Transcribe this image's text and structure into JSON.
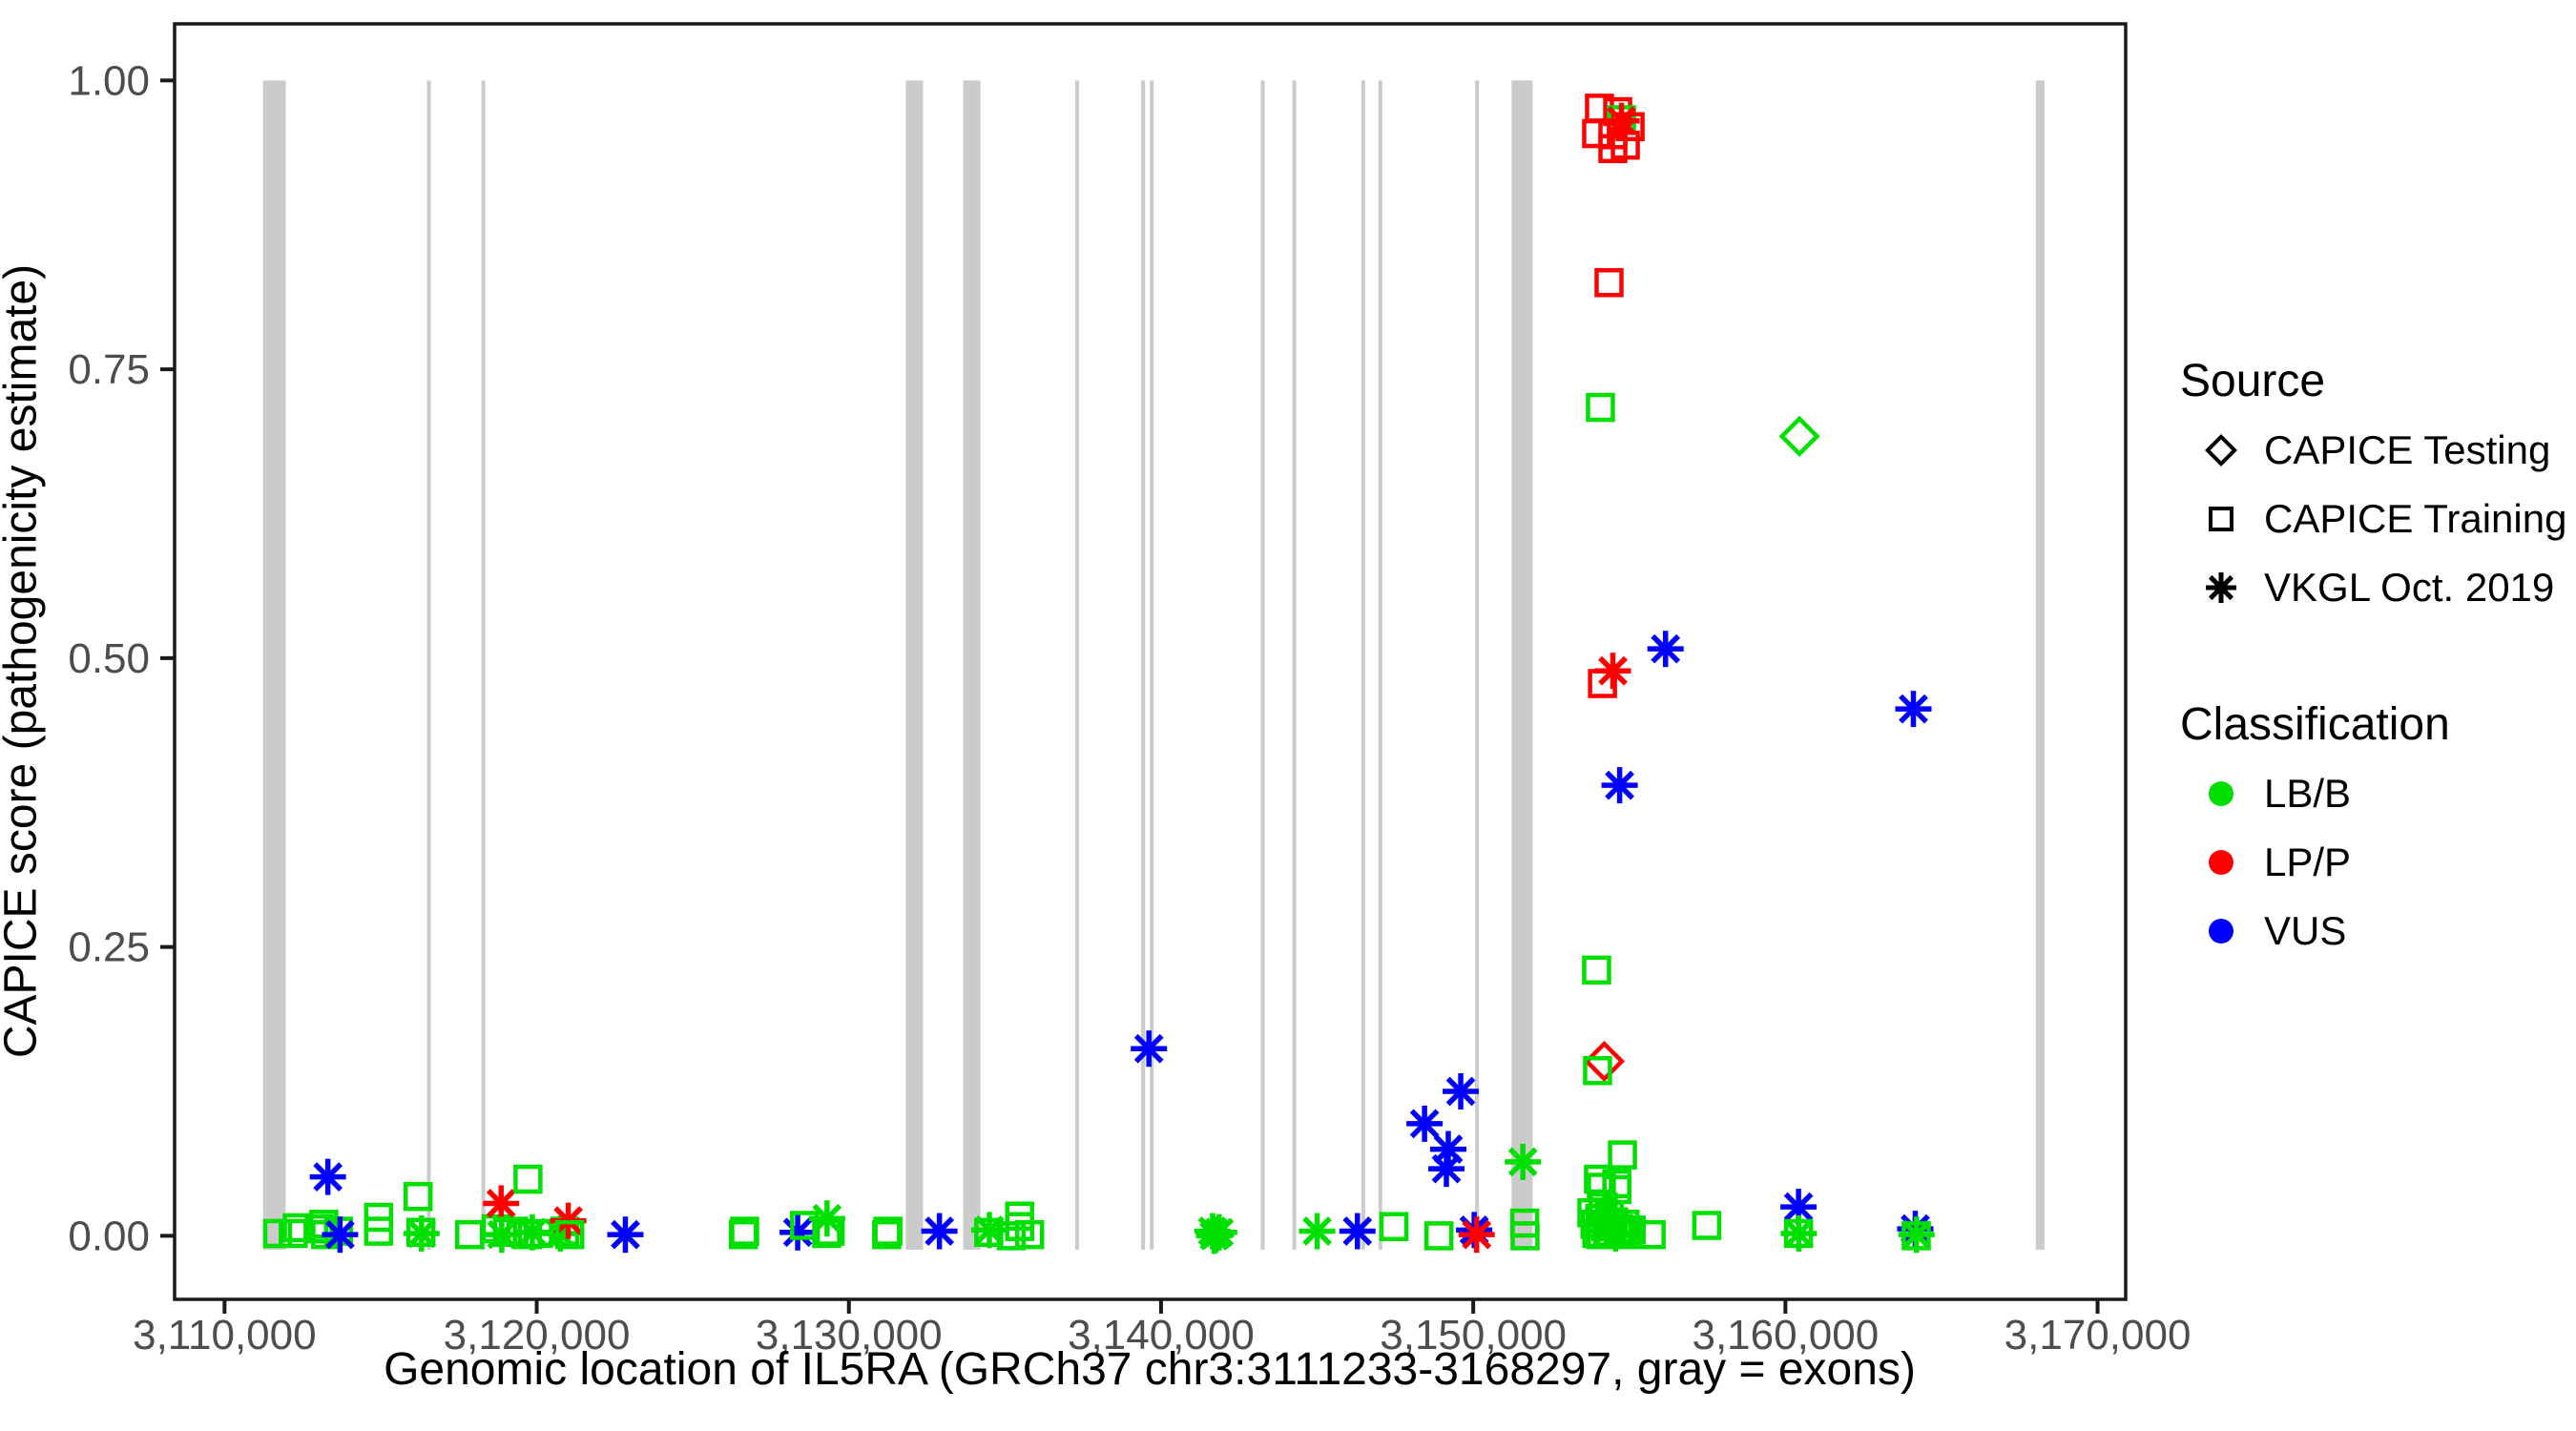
{
  "colors": {
    "lb_b": "#00E000",
    "lp_p": "#FF0000",
    "vus": "#0000FF",
    "exon_gray": "#CBCBCB",
    "axis_text": "#4D4D4D",
    "axis_line": "#1A1A1A",
    "legend_symbol": "#000000"
  },
  "legend": {
    "source": {
      "title": "Source",
      "items": [
        {
          "shape": "diamond",
          "label": "CAPICE Testing"
        },
        {
          "shape": "square",
          "label": "CAPICE Training"
        },
        {
          "shape": "asterisk",
          "label": "VKGL Oct. 2019"
        }
      ]
    },
    "classification": {
      "title": "Classification",
      "items": [
        {
          "label": "LB/B",
          "color_key": "lb_b"
        },
        {
          "label": "LP/P",
          "color_key": "lp_p"
        },
        {
          "label": "VUS",
          "color_key": "vus"
        }
      ]
    }
  },
  "chart_data": {
    "type": "scatter",
    "title": "",
    "xlabel": "Genomic location of IL5RA (GRCh37 chr3:3111233-3168297, gray = exons)",
    "ylabel": "CAPICE score (pathogenicity estimate)",
    "grid": false,
    "legend_position": "right",
    "xlim": [
      3108400,
      3170900
    ],
    "ylim": [
      -0.055,
      1.049
    ],
    "x_ticks": [
      {
        "value": 3110000,
        "label": "3,110,000"
      },
      {
        "value": 3120000,
        "label": "3,120,000"
      },
      {
        "value": 3130000,
        "label": "3,130,000"
      },
      {
        "value": 3140000,
        "label": "3,140,000"
      },
      {
        "value": 3150000,
        "label": "3,150,000"
      },
      {
        "value": 3160000,
        "label": "3,160,000"
      },
      {
        "value": 3170000,
        "label": "3,170,000"
      }
    ],
    "y_ticks": [
      {
        "value": 0.0,
        "label": "0.00"
      },
      {
        "value": 0.25,
        "label": "0.25"
      },
      {
        "value": 0.5,
        "label": "0.50"
      },
      {
        "value": 0.75,
        "label": "0.75"
      },
      {
        "value": 1.0,
        "label": "1.00"
      }
    ],
    "exons_note": "gray vertical bars = IL5RA exons, drawn from score 0 to 1",
    "exons": [
      [
        3111233,
        3111960
      ],
      [
        3116482,
        3116605
      ],
      [
        3118229,
        3118352
      ],
      [
        3131824,
        3132376
      ],
      [
        3133663,
        3134215
      ],
      [
        3137249,
        3137372
      ],
      [
        3139364,
        3139487
      ],
      [
        3139640,
        3139763
      ],
      [
        3143195,
        3143318
      ],
      [
        3144207,
        3144330
      ],
      [
        3146414,
        3146536
      ],
      [
        3146965,
        3147088
      ],
      [
        3150061,
        3150184
      ],
      [
        3151226,
        3151900
      ],
      [
        3168020,
        3168300
      ]
    ],
    "shape_legend": {
      "square": "CAPICE Training",
      "diamond": "CAPICE Testing",
      "asterisk": "VKGL Oct. 2019"
    },
    "class_legend": {
      "LB": "LB/B",
      "LP": "LP/P",
      "VUS": "VUS"
    },
    "points": [
      {
        "x": 3111700,
        "y": 0.002,
        "shape": "square",
        "cls": "LB"
      },
      {
        "x": 3112200,
        "y": 0.002,
        "shape": "square",
        "cls": "LB"
      },
      {
        "x": 3112330,
        "y": 0.007,
        "shape": "square",
        "cls": "LB"
      },
      {
        "x": 3113030,
        "y": 0.006,
        "shape": "square",
        "cls": "LB"
      },
      {
        "x": 3113180,
        "y": 0.01,
        "shape": "square",
        "cls": "LB"
      },
      {
        "x": 3113240,
        "y": 0.001,
        "shape": "square",
        "cls": "LB"
      },
      {
        "x": 3113310,
        "y": 0.051,
        "shape": "asterisk",
        "cls": "VUS"
      },
      {
        "x": 3113650,
        "y": 0.004,
        "shape": "square",
        "cls": "LB"
      },
      {
        "x": 3113700,
        "y": 0.001,
        "shape": "asterisk",
        "cls": "VUS"
      },
      {
        "x": 3114935,
        "y": 0.016,
        "shape": "square",
        "cls": "LB"
      },
      {
        "x": 3114935,
        "y": 0.004,
        "shape": "square",
        "cls": "LB"
      },
      {
        "x": 3116200,
        "y": 0.034,
        "shape": "square",
        "cls": "LB"
      },
      {
        "x": 3116290,
        "y": 0.003,
        "shape": "square",
        "cls": "LB"
      },
      {
        "x": 3116310,
        "y": 0.002,
        "shape": "asterisk",
        "cls": "LB"
      },
      {
        "x": 3117850,
        "y": 0.001,
        "shape": "square",
        "cls": "LB"
      },
      {
        "x": 3118700,
        "y": 0.006,
        "shape": "square",
        "cls": "LB"
      },
      {
        "x": 3118860,
        "y": 0.028,
        "shape": "asterisk",
        "cls": "LP"
      },
      {
        "x": 3118880,
        "y": 0.001,
        "shape": "asterisk",
        "cls": "LB"
      },
      {
        "x": 3119060,
        "y": 0.003,
        "shape": "square",
        "cls": "LB"
      },
      {
        "x": 3119260,
        "y": 0.004,
        "shape": "square",
        "cls": "LB"
      },
      {
        "x": 3119720,
        "y": 0.049,
        "shape": "square",
        "cls": "LB"
      },
      {
        "x": 3119700,
        "y": 0.001,
        "shape": "square",
        "cls": "LB"
      },
      {
        "x": 3119860,
        "y": 0.003,
        "shape": "asterisk",
        "cls": "LB"
      },
      {
        "x": 3120060,
        "y": 0.002,
        "shape": "square",
        "cls": "LB"
      },
      {
        "x": 3120760,
        "y": 0.002,
        "shape": "asterisk",
        "cls": "LB"
      },
      {
        "x": 3120900,
        "y": 0.004,
        "shape": "square",
        "cls": "LB"
      },
      {
        "x": 3121010,
        "y": 0.013,
        "shape": "asterisk",
        "cls": "LP"
      },
      {
        "x": 3121060,
        "y": 0.001,
        "shape": "square",
        "cls": "LB"
      },
      {
        "x": 3122840,
        "y": 0.001,
        "shape": "asterisk",
        "cls": "VUS"
      },
      {
        "x": 3126620,
        "y": 0.001,
        "shape": "square",
        "cls": "LB"
      },
      {
        "x": 3126660,
        "y": 0.004,
        "shape": "square",
        "cls": "LB"
      },
      {
        "x": 3128360,
        "y": 0.003,
        "shape": "asterisk",
        "cls": "VUS"
      },
      {
        "x": 3128580,
        "y": 0.009,
        "shape": "square",
        "cls": "LB"
      },
      {
        "x": 3129300,
        "y": 0.015,
        "shape": "asterisk",
        "cls": "LB"
      },
      {
        "x": 3129290,
        "y": 0.002,
        "shape": "square",
        "cls": "LB"
      },
      {
        "x": 3129400,
        "y": 0.004,
        "shape": "square",
        "cls": "LB"
      },
      {
        "x": 3131210,
        "y": 0.001,
        "shape": "square",
        "cls": "LB"
      },
      {
        "x": 3131250,
        "y": 0.004,
        "shape": "square",
        "cls": "LB"
      },
      {
        "x": 3132900,
        "y": 0.004,
        "shape": "asterisk",
        "cls": "VUS"
      },
      {
        "x": 3134480,
        "y": 0.003,
        "shape": "square",
        "cls": "LB"
      },
      {
        "x": 3134500,
        "y": 0.005,
        "shape": "asterisk",
        "cls": "LB"
      },
      {
        "x": 3135470,
        "y": 0.017,
        "shape": "square",
        "cls": "LB"
      },
      {
        "x": 3135470,
        "y": 0.008,
        "shape": "square",
        "cls": "LB"
      },
      {
        "x": 3135200,
        "y": 0.0,
        "shape": "square",
        "cls": "LB"
      },
      {
        "x": 3135790,
        "y": 0.001,
        "shape": "square",
        "cls": "LB"
      },
      {
        "x": 3139610,
        "y": 0.162,
        "shape": "asterisk",
        "cls": "VUS"
      },
      {
        "x": 3141650,
        "y": 0.004,
        "shape": "asterisk",
        "cls": "LB"
      },
      {
        "x": 3141760,
        "y": 0.001,
        "shape": "asterisk",
        "cls": "LB"
      },
      {
        "x": 3141860,
        "y": 0.003,
        "shape": "asterisk",
        "cls": "LB"
      },
      {
        "x": 3141700,
        "y": 0.0,
        "shape": "asterisk",
        "cls": "LB"
      },
      {
        "x": 3145000,
        "y": 0.004,
        "shape": "asterisk",
        "cls": "LB"
      },
      {
        "x": 3146290,
        "y": 0.004,
        "shape": "asterisk",
        "cls": "VUS"
      },
      {
        "x": 3147460,
        "y": 0.008,
        "shape": "square",
        "cls": "LB"
      },
      {
        "x": 3148440,
        "y": 0.097,
        "shape": "asterisk",
        "cls": "VUS"
      },
      {
        "x": 3148900,
        "y": 0.0,
        "shape": "square",
        "cls": "LB"
      },
      {
        "x": 3149140,
        "y": 0.058,
        "shape": "asterisk",
        "cls": "VUS"
      },
      {
        "x": 3149200,
        "y": 0.075,
        "shape": "asterisk",
        "cls": "VUS"
      },
      {
        "x": 3149600,
        "y": 0.125,
        "shape": "asterisk",
        "cls": "VUS"
      },
      {
        "x": 3150030,
        "y": 0.005,
        "shape": "asterisk",
        "cls": "VUS"
      },
      {
        "x": 3150110,
        "y": 0.001,
        "shape": "asterisk",
        "cls": "LP"
      },
      {
        "x": 3154044,
        "y": 0.976,
        "shape": "square",
        "cls": "LP"
      },
      {
        "x": 3154627,
        "y": 0.973,
        "shape": "square",
        "cls": "LP"
      },
      {
        "x": 3154750,
        "y": 0.966,
        "shape": "square",
        "cls": "LB"
      },
      {
        "x": 3154750,
        "y": 0.965,
        "shape": "asterisk",
        "cls": "LP"
      },
      {
        "x": 3155025,
        "y": 0.96,
        "shape": "square",
        "cls": "LP"
      },
      {
        "x": 3153952,
        "y": 0.954,
        "shape": "square",
        "cls": "LP"
      },
      {
        "x": 3154473,
        "y": 0.953,
        "shape": "square",
        "cls": "LP"
      },
      {
        "x": 3154872,
        "y": 0.944,
        "shape": "square",
        "cls": "LP"
      },
      {
        "x": 3154473,
        "y": 0.941,
        "shape": "square",
        "cls": "LP"
      },
      {
        "x": 3154350,
        "y": 0.825,
        "shape": "square",
        "cls": "LP"
      },
      {
        "x": 3154075,
        "y": 0.717,
        "shape": "square",
        "cls": "LB"
      },
      {
        "x": 3156160,
        "y": 0.508,
        "shape": "asterisk",
        "cls": "VUS"
      },
      {
        "x": 3154473,
        "y": 0.489,
        "shape": "asterisk",
        "cls": "LP"
      },
      {
        "x": 3154140,
        "y": 0.478,
        "shape": "square",
        "cls": "LP"
      },
      {
        "x": 3154690,
        "y": 0.39,
        "shape": "asterisk",
        "cls": "VUS"
      },
      {
        "x": 3153952,
        "y": 0.23,
        "shape": "square",
        "cls": "LB"
      },
      {
        "x": 3154197,
        "y": 0.151,
        "shape": "diamond",
        "cls": "LP"
      },
      {
        "x": 3153982,
        "y": 0.143,
        "shape": "square",
        "cls": "LB"
      },
      {
        "x": 3151590,
        "y": 0.064,
        "shape": "asterisk",
        "cls": "LB"
      },
      {
        "x": 3151650,
        "y": 0.011,
        "shape": "square",
        "cls": "LB"
      },
      {
        "x": 3151660,
        "y": 0.0,
        "shape": "square",
        "cls": "LB"
      },
      {
        "x": 3154780,
        "y": 0.07,
        "shape": "square",
        "cls": "LB"
      },
      {
        "x": 3154013,
        "y": 0.049,
        "shape": "square",
        "cls": "LB"
      },
      {
        "x": 3154105,
        "y": 0.042,
        "shape": "square",
        "cls": "LB"
      },
      {
        "x": 3154600,
        "y": 0.045,
        "shape": "square",
        "cls": "LB"
      },
      {
        "x": 3154600,
        "y": 0.04,
        "shape": "square",
        "cls": "LB"
      },
      {
        "x": 3153800,
        "y": 0.02,
        "shape": "square",
        "cls": "LB"
      },
      {
        "x": 3153900,
        "y": 0.01,
        "shape": "square",
        "cls": "LB"
      },
      {
        "x": 3153960,
        "y": 0.002,
        "shape": "square",
        "cls": "LB"
      },
      {
        "x": 3154050,
        "y": 0.015,
        "shape": "square",
        "cls": "LB"
      },
      {
        "x": 3154100,
        "y": 0.001,
        "shape": "square",
        "cls": "LB"
      },
      {
        "x": 3154160,
        "y": 0.025,
        "shape": "square",
        "cls": "LB"
      },
      {
        "x": 3154250,
        "y": 0.008,
        "shape": "square",
        "cls": "LB"
      },
      {
        "x": 3154310,
        "y": 0.001,
        "shape": "square",
        "cls": "LB"
      },
      {
        "x": 3154360,
        "y": 0.018,
        "shape": "square",
        "cls": "LB"
      },
      {
        "x": 3154410,
        "y": 0.003,
        "shape": "square",
        "cls": "LB"
      },
      {
        "x": 3154500,
        "y": 0.012,
        "shape": "square",
        "cls": "LB"
      },
      {
        "x": 3154560,
        "y": 0.002,
        "shape": "asterisk",
        "cls": "LB"
      },
      {
        "x": 3154650,
        "y": 0.006,
        "shape": "square",
        "cls": "LB"
      },
      {
        "x": 3154760,
        "y": 0.001,
        "shape": "square",
        "cls": "LB"
      },
      {
        "x": 3154860,
        "y": 0.01,
        "shape": "square",
        "cls": "LB"
      },
      {
        "x": 3154950,
        "y": 0.002,
        "shape": "square",
        "cls": "LB"
      },
      {
        "x": 3155060,
        "y": 0.005,
        "shape": "square",
        "cls": "LB"
      },
      {
        "x": 3155700,
        "y": 0.001,
        "shape": "square",
        "cls": "LB"
      },
      {
        "x": 3157480,
        "y": 0.009,
        "shape": "square",
        "cls": "LB"
      },
      {
        "x": 3160450,
        "y": 0.692,
        "shape": "diamond",
        "cls": "LB"
      },
      {
        "x": 3160420,
        "y": 0.025,
        "shape": "asterisk",
        "cls": "VUS"
      },
      {
        "x": 3160420,
        "y": 0.002,
        "shape": "square",
        "cls": "LB"
      },
      {
        "x": 3160430,
        "y": 0.002,
        "shape": "asterisk",
        "cls": "LB"
      },
      {
        "x": 3164100,
        "y": 0.456,
        "shape": "asterisk",
        "cls": "VUS"
      },
      {
        "x": 3164160,
        "y": 0.006,
        "shape": "asterisk",
        "cls": "VUS"
      },
      {
        "x": 3164190,
        "y": 0.0,
        "shape": "square",
        "cls": "LB"
      },
      {
        "x": 3164200,
        "y": 0.001,
        "shape": "asterisk",
        "cls": "LB"
      }
    ]
  }
}
